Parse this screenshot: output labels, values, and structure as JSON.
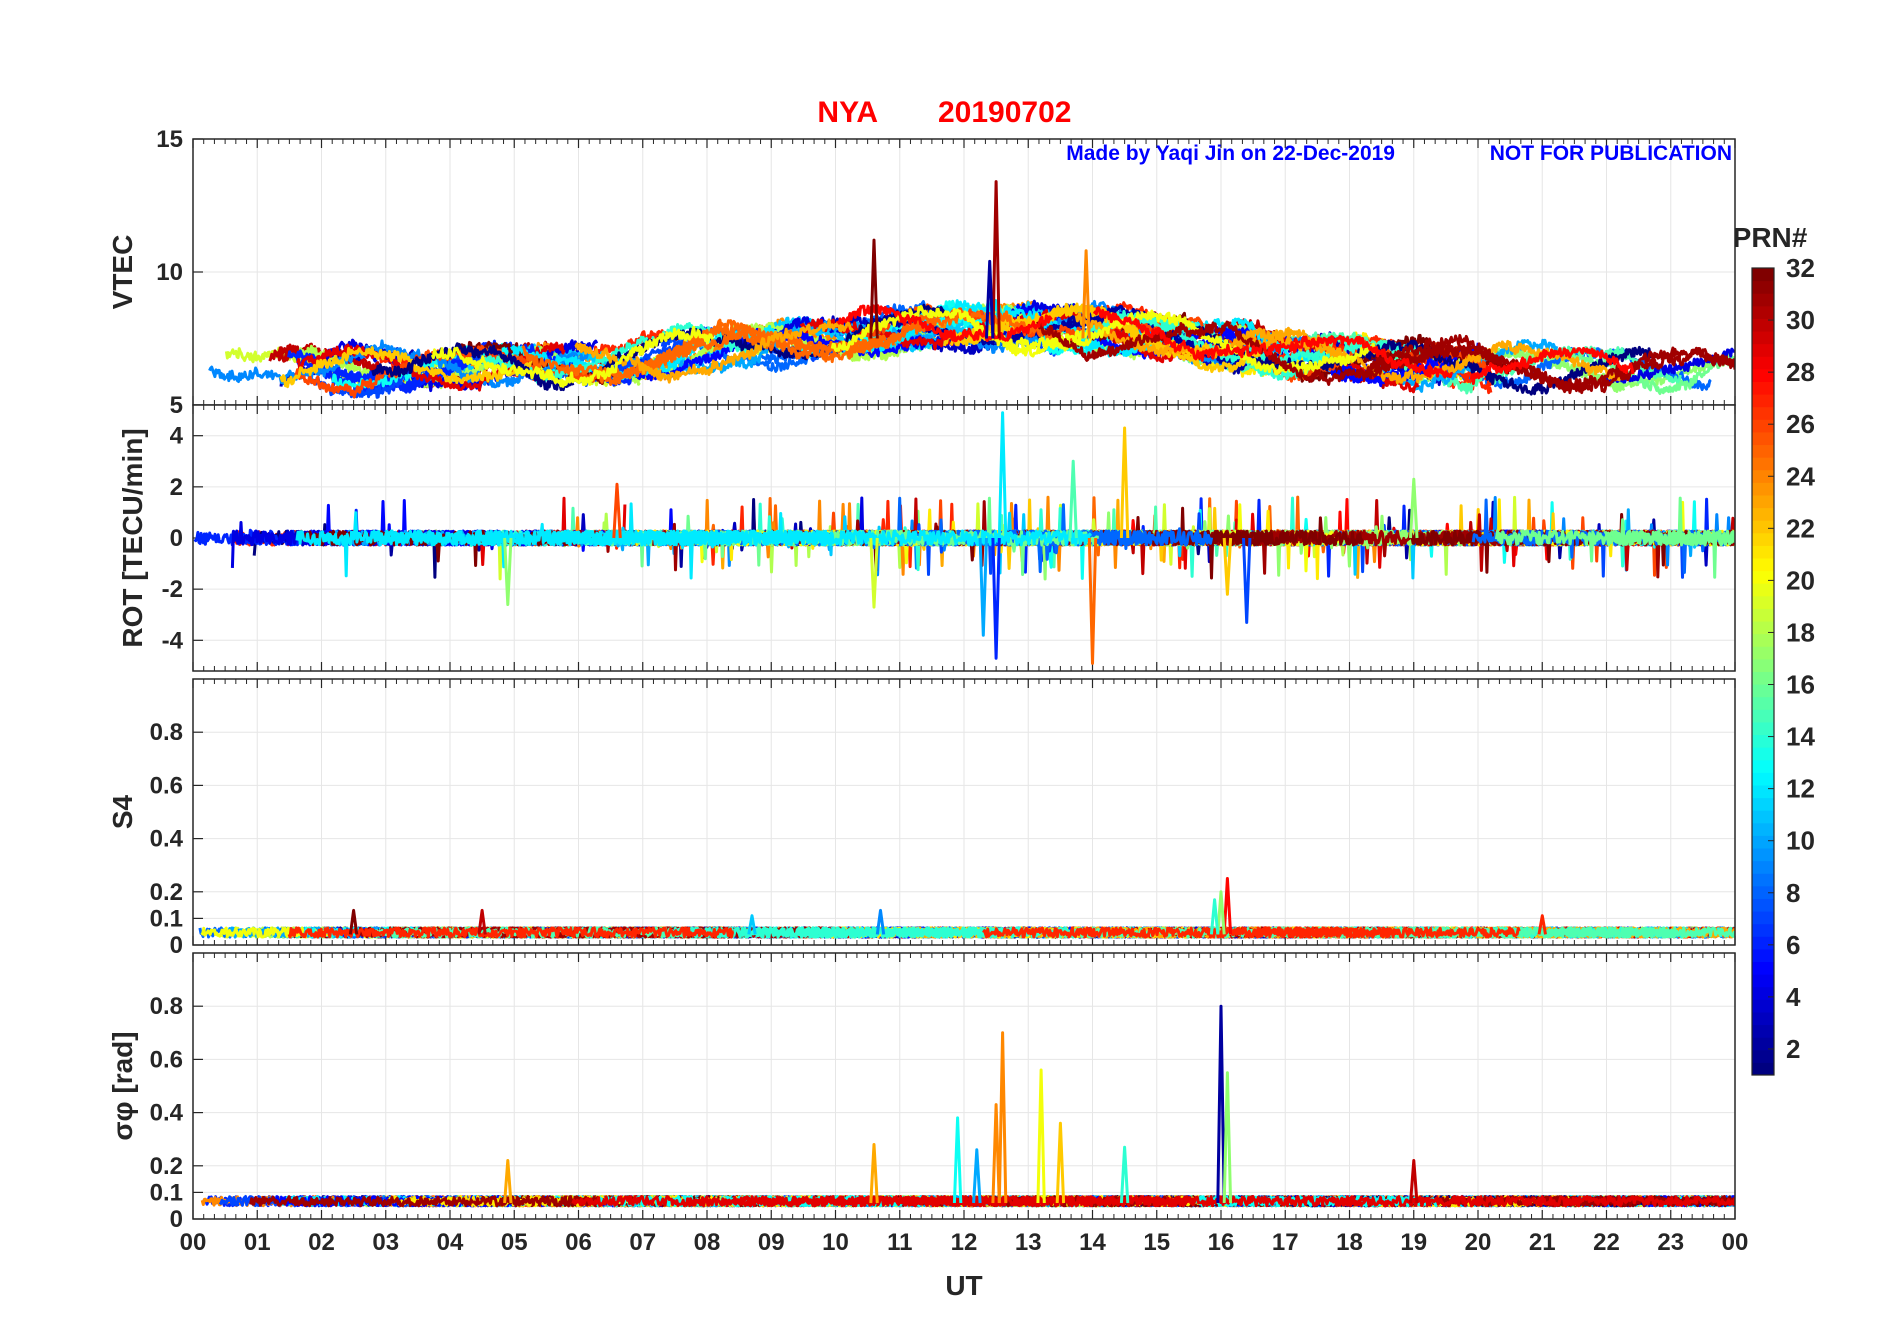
{
  "title": {
    "station": "NYA",
    "date": "20190702"
  },
  "annotations": {
    "made_by": "Made by Yaqi Jin on 22-Dec-2019",
    "notice": "NOT FOR PUBLICATION"
  },
  "xlabel": "UT",
  "x_ticks": [
    "00",
    "01",
    "02",
    "03",
    "04",
    "05",
    "06",
    "07",
    "08",
    "09",
    "10",
    "11",
    "12",
    "13",
    "14",
    "15",
    "16",
    "17",
    "18",
    "19",
    "20",
    "21",
    "22",
    "23",
    "00"
  ],
  "colorbar": {
    "label": "PRN#",
    "range": [
      1,
      32
    ],
    "ticks": [
      "2",
      "4",
      "6",
      "8",
      "10",
      "12",
      "14",
      "16",
      "18",
      "20",
      "22",
      "24",
      "26",
      "28",
      "30",
      "32"
    ]
  },
  "panels": [
    {
      "ylabel": "VTEC",
      "ylim": [
        5,
        15
      ],
      "yticks": [
        "5",
        "10",
        "15"
      ]
    },
    {
      "ylabel": "ROT [TECU/min]",
      "ylim": [
        -5.2,
        5.2
      ],
      "yticks": [
        "-4",
        "-2",
        "0",
        "2",
        "4"
      ]
    },
    {
      "ylabel": "S4",
      "ylim": [
        0,
        1
      ],
      "yticks": [
        "0",
        "0.1",
        "0.2",
        "0.4",
        "0.6",
        "0.8"
      ]
    },
    {
      "ylabel": "σφ [rad]",
      "ylim": [
        0,
        1
      ],
      "yticks": [
        "0",
        "0.1",
        "0.2",
        "0.4",
        "0.6",
        "0.8"
      ]
    }
  ],
  "chart_data": {
    "type": "line",
    "title": "NYA 20190702",
    "xlabel": "UT",
    "xlim": [
      0,
      24
    ],
    "series_count": 32,
    "series_color_key": "PRN#",
    "panels": [
      {
        "name": "VTEC",
        "ylim": [
          5,
          15
        ],
        "baseline": 7.5,
        "peaks": [
          [
            10.6,
            11.2
          ],
          [
            12.5,
            13.4
          ],
          [
            12.4,
            10.4
          ],
          [
            13.9,
            10.8
          ]
        ]
      },
      {
        "name": "ROT [TECU/min]",
        "ylim": [
          -5.2,
          5.2
        ],
        "baseline": 0,
        "peaks": [
          [
            12.6,
            4.9
          ],
          [
            12.5,
            -4.7
          ],
          [
            14.0,
            -4.9
          ],
          [
            14.5,
            4.3
          ],
          [
            12.3,
            -3.8
          ],
          [
            13.7,
            3.0
          ],
          [
            16.1,
            -2.2
          ],
          [
            16.4,
            -3.3
          ],
          [
            19.0,
            2.3
          ],
          [
            10.6,
            -2.7
          ],
          [
            4.9,
            -2.6
          ],
          [
            6.6,
            2.1
          ]
        ]
      },
      {
        "name": "S4",
        "ylim": [
          0,
          1
        ],
        "baseline": 0.04,
        "peaks": [
          [
            16.1,
            0.25
          ],
          [
            16.0,
            0.2
          ],
          [
            15.9,
            0.17
          ],
          [
            10.7,
            0.13
          ],
          [
            4.5,
            0.13
          ],
          [
            2.5,
            0.13
          ],
          [
            8.7,
            0.11
          ],
          [
            21.0,
            0.11
          ]
        ]
      },
      {
        "name": "σφ [rad]",
        "ylim": [
          0,
          1
        ],
        "baseline": 0.06,
        "peaks": [
          [
            16.0,
            0.8
          ],
          [
            16.1,
            0.55
          ],
          [
            12.6,
            0.7
          ],
          [
            13.2,
            0.56
          ],
          [
            12.5,
            0.43
          ],
          [
            13.5,
            0.36
          ],
          [
            11.9,
            0.38
          ],
          [
            14.5,
            0.27
          ],
          [
            12.2,
            0.26
          ],
          [
            10.6,
            0.28
          ],
          [
            19.0,
            0.22
          ],
          [
            4.9,
            0.22
          ]
        ]
      }
    ]
  }
}
